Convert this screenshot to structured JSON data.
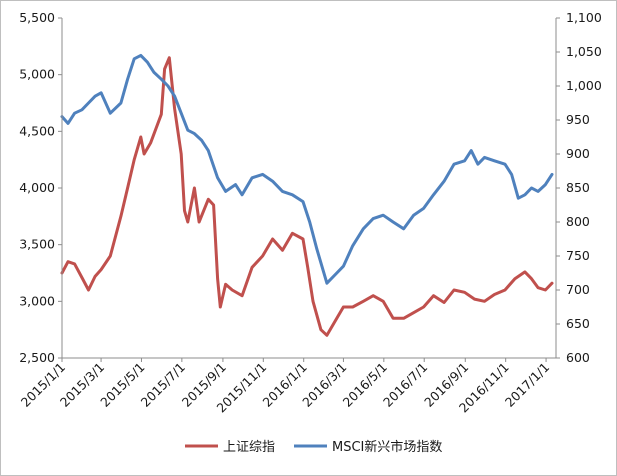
{
  "chart_data": {
    "type": "line",
    "title": "",
    "xlabel": "",
    "ylabel": "",
    "x_ticks": [
      "2015/1/1",
      "2015/3/1",
      "2015/5/1",
      "2015/7/1",
      "2015/9/1",
      "2015/11/1",
      "2016/1/1",
      "2016/3/1",
      "2016/5/1",
      "2016/7/1",
      "2016/9/1",
      "2016/11/1",
      "2017/1/1"
    ],
    "y_left": {
      "ylim": [
        2500,
        5500
      ],
      "ticks": [
        "2,500",
        "3,000",
        "3,500",
        "4,000",
        "4,500",
        "5,000",
        "5,500"
      ],
      "tick_values": [
        2500,
        3000,
        3500,
        4000,
        4500,
        5000,
        5500
      ]
    },
    "y_right": {
      "ylim": [
        600,
        1100
      ],
      "ticks": [
        "600",
        "650",
        "700",
        "750",
        "800",
        "850",
        "900",
        "950",
        "1,000",
        "1,050",
        "1,100"
      ],
      "tick_values": [
        600,
        650,
        700,
        750,
        800,
        850,
        900,
        950,
        1000,
        1050,
        1100
      ]
    },
    "grid": false,
    "legend_position": "bottom",
    "series": [
      {
        "name": "上证综指",
        "axis": "left",
        "color": "#c0504d",
        "points": [
          [
            "2015/1/1",
            3250
          ],
          [
            "2015/1/10",
            3350
          ],
          [
            "2015/1/20",
            3330
          ],
          [
            "2015/1/31",
            3210
          ],
          [
            "2015/2/10",
            3100
          ],
          [
            "2015/2/20",
            3220
          ],
          [
            "2015/3/1",
            3280
          ],
          [
            "2015/3/15",
            3400
          ],
          [
            "2015/3/31",
            3750
          ],
          [
            "2015/4/10",
            4000
          ],
          [
            "2015/4/20",
            4250
          ],
          [
            "2015/4/30",
            4450
          ],
          [
            "2015/5/5",
            4300
          ],
          [
            "2015/5/15",
            4400
          ],
          [
            "2015/5/31",
            4650
          ],
          [
            "2015/6/5",
            5050
          ],
          [
            "2015/6/12",
            5150
          ],
          [
            "2015/6/20",
            4700
          ],
          [
            "2015/6/30",
            4300
          ],
          [
            "2015/7/5",
            3800
          ],
          [
            "2015/7/10",
            3700
          ],
          [
            "2015/7/20",
            4000
          ],
          [
            "2015/7/27",
            3700
          ],
          [
            "2015/8/10",
            3900
          ],
          [
            "2015/8/18",
            3850
          ],
          [
            "2015/8/24",
            3200
          ],
          [
            "2015/8/28",
            2950
          ],
          [
            "2015/9/5",
            3150
          ],
          [
            "2015/9/15",
            3100
          ],
          [
            "2015/9/30",
            3050
          ],
          [
            "2015/10/15",
            3300
          ],
          [
            "2015/10/31",
            3400
          ],
          [
            "2015/11/15",
            3550
          ],
          [
            "2015/11/30",
            3450
          ],
          [
            "2015/12/15",
            3600
          ],
          [
            "2015/12/31",
            3550
          ],
          [
            "2016/1/7",
            3300
          ],
          [
            "2016/1/15",
            3000
          ],
          [
            "2016/1/27",
            2750
          ],
          [
            "2016/2/5",
            2700
          ],
          [
            "2016/2/20",
            2850
          ],
          [
            "2016/3/1",
            2950
          ],
          [
            "2016/3/15",
            2950
          ],
          [
            "2016/3/31",
            3000
          ],
          [
            "2016/4/15",
            3050
          ],
          [
            "2016/4/30",
            3000
          ],
          [
            "2016/5/15",
            2850
          ],
          [
            "2016/5/31",
            2850
          ],
          [
            "2016/6/15",
            2900
          ],
          [
            "2016/6/30",
            2950
          ],
          [
            "2016/7/15",
            3050
          ],
          [
            "2016/7/31",
            2990
          ],
          [
            "2016/8/15",
            3100
          ],
          [
            "2016/8/31",
            3080
          ],
          [
            "2016/9/15",
            3020
          ],
          [
            "2016/9/30",
            3000
          ],
          [
            "2016/10/15",
            3060
          ],
          [
            "2016/10/31",
            3100
          ],
          [
            "2016/11/15",
            3200
          ],
          [
            "2016/11/30",
            3260
          ],
          [
            "2016/12/10",
            3200
          ],
          [
            "2016/12/20",
            3120
          ],
          [
            "2016/12/31",
            3100
          ],
          [
            "2017/1/10",
            3160
          ]
        ]
      },
      {
        "name": "MSCI新兴市场指数",
        "axis": "right",
        "color": "#4f81bd",
        "points": [
          [
            "2015/1/1",
            955
          ],
          [
            "2015/1/10",
            945
          ],
          [
            "2015/1/20",
            960
          ],
          [
            "2015/1/31",
            965
          ],
          [
            "2015/2/10",
            975
          ],
          [
            "2015/2/20",
            985
          ],
          [
            "2015/3/1",
            990
          ],
          [
            "2015/3/15",
            960
          ],
          [
            "2015/3/31",
            975
          ],
          [
            "2015/4/10",
            1010
          ],
          [
            "2015/4/20",
            1040
          ],
          [
            "2015/4/30",
            1045
          ],
          [
            "2015/5/10",
            1035
          ],
          [
            "2015/5/20",
            1020
          ],
          [
            "2015/5/31",
            1010
          ],
          [
            "2015/6/10",
            1000
          ],
          [
            "2015/6/20",
            985
          ],
          [
            "2015/6/30",
            960
          ],
          [
            "2015/7/10",
            935
          ],
          [
            "2015/7/20",
            930
          ],
          [
            "2015/7/31",
            920
          ],
          [
            "2015/8/10",
            905
          ],
          [
            "2015/8/24",
            865
          ],
          [
            "2015/9/5",
            845
          ],
          [
            "2015/9/20",
            855
          ],
          [
            "2015/9/30",
            840
          ],
          [
            "2015/10/15",
            865
          ],
          [
            "2015/10/31",
            870
          ],
          [
            "2015/11/15",
            860
          ],
          [
            "2015/11/30",
            845
          ],
          [
            "2015/12/15",
            840
          ],
          [
            "2015/12/31",
            830
          ],
          [
            "2016/1/10",
            800
          ],
          [
            "2016/1/21",
            760
          ],
          [
            "2016/2/5",
            710
          ],
          [
            "2016/2/20",
            725
          ],
          [
            "2016/3/1",
            735
          ],
          [
            "2016/3/15",
            765
          ],
          [
            "2016/3/31",
            790
          ],
          [
            "2016/4/15",
            805
          ],
          [
            "2016/4/30",
            810
          ],
          [
            "2016/5/15",
            800
          ],
          [
            "2016/5/31",
            790
          ],
          [
            "2016/6/15",
            810
          ],
          [
            "2016/6/30",
            820
          ],
          [
            "2016/7/15",
            840
          ],
          [
            "2016/7/31",
            860
          ],
          [
            "2016/8/15",
            885
          ],
          [
            "2016/8/31",
            890
          ],
          [
            "2016/9/10",
            905
          ],
          [
            "2016/9/20",
            885
          ],
          [
            "2016/9/30",
            895
          ],
          [
            "2016/10/15",
            890
          ],
          [
            "2016/10/31",
            885
          ],
          [
            "2016/11/10",
            870
          ],
          [
            "2016/11/20",
            835
          ],
          [
            "2016/11/30",
            840
          ],
          [
            "2016/12/10",
            850
          ],
          [
            "2016/12/20",
            845
          ],
          [
            "2016/12/31",
            855
          ],
          [
            "2017/1/10",
            870
          ]
        ]
      }
    ]
  }
}
